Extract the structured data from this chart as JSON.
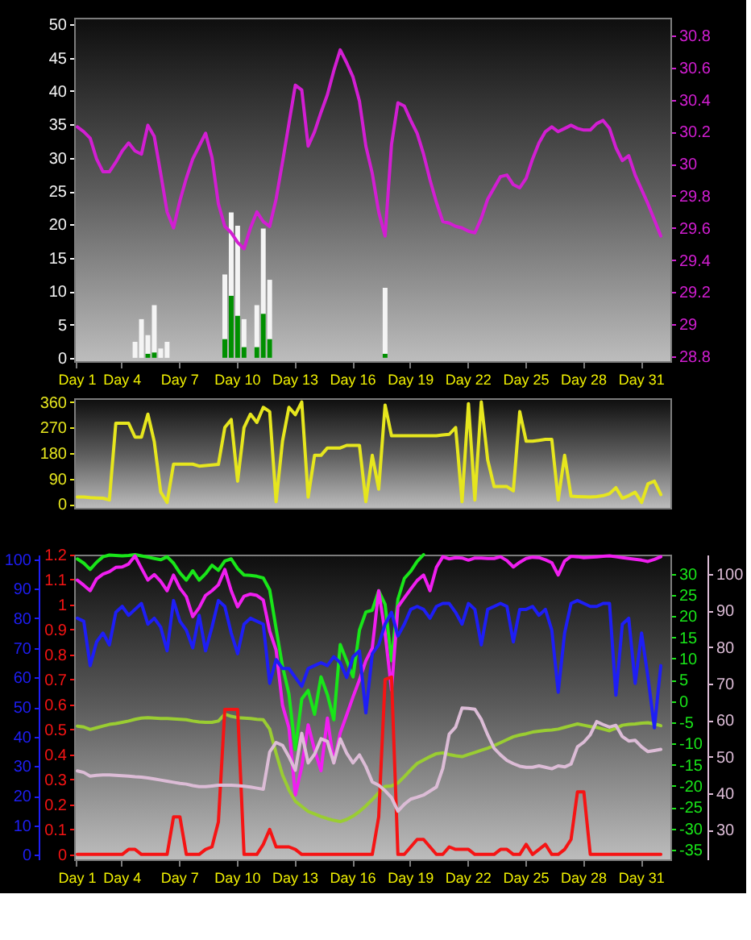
{
  "chart_data": [
    {
      "type": "bar",
      "categories": [
        "Day 1",
        null,
        null,
        null,
        null,
        null,
        null,
        "Day 4",
        null,
        null,
        null,
        null,
        null,
        null,
        null,
        null,
        "Day 7",
        null,
        null,
        null,
        null,
        null,
        null,
        null,
        null,
        "Day 10",
        null,
        null,
        null,
        null,
        null,
        null,
        null,
        null,
        "Day 13",
        null,
        null,
        null,
        null,
        null,
        null,
        null,
        null,
        "Day 16",
        null,
        null,
        null,
        null,
        null,
        null,
        null,
        null,
        "Day 19",
        null,
        null,
        null,
        null,
        null,
        null,
        null,
        null,
        "Day 22",
        null,
        null,
        null,
        null,
        null,
        null,
        null,
        null,
        "Day 25",
        null,
        null,
        null,
        null,
        null,
        null,
        null,
        null,
        "Day 28",
        null,
        null,
        null,
        null,
        null,
        null,
        null,
        null,
        "Day 31",
        null,
        null,
        null,
        null
      ],
      "ylim": [
        -0.5,
        51
      ],
      "yticks": [
        0,
        5,
        10,
        15,
        20,
        25,
        30,
        35,
        40,
        45,
        50
      ],
      "y2lim": [
        28.77,
        30.91
      ],
      "y2ticks": [
        28.8,
        29,
        29.2,
        29.4,
        29.6,
        29.8,
        30,
        30.2,
        30.4,
        30.6,
        30.8
      ],
      "series": [
        {
          "color": "#f4f4f4",
          "values": [
            null,
            null,
            null,
            null,
            null,
            null,
            null,
            null,
            null,
            2.4,
            5.8,
            3.4,
            7.9,
            1.4,
            2.4,
            null,
            null,
            null,
            null,
            null,
            null,
            null,
            null,
            12.5,
            21.8,
            19.8,
            5.8,
            null,
            7.9,
            19.4,
            11.7,
            null,
            null,
            null,
            null,
            null,
            null,
            null,
            null,
            null,
            null,
            null,
            null,
            null,
            null,
            null,
            null,
            null,
            10.5,
            null,
            null,
            null,
            null,
            null,
            null,
            null,
            null,
            null,
            null,
            null,
            null,
            null,
            null,
            null,
            null,
            null,
            null,
            null,
            null,
            null,
            null,
            null,
            null,
            null,
            null,
            null,
            null,
            null,
            null,
            null,
            null,
            null,
            null,
            null,
            null,
            null,
            null,
            null,
            null,
            null,
            null,
            null,
            null
          ]
        },
        {
          "color": "#008f00",
          "values": [
            null,
            null,
            null,
            null,
            null,
            null,
            null,
            null,
            null,
            null,
            null,
            0.6,
            0.8,
            null,
            null,
            null,
            null,
            null,
            null,
            null,
            null,
            null,
            null,
            2.8,
            9.3,
            6.3,
            1.6,
            null,
            1.6,
            6.6,
            2.8,
            null,
            null,
            null,
            null,
            null,
            null,
            null,
            null,
            null,
            null,
            null,
            null,
            null,
            null,
            null,
            null,
            null,
            0.6,
            null,
            null,
            null,
            null,
            null,
            null,
            null,
            null,
            null,
            null,
            null,
            null,
            null,
            null,
            null,
            null,
            null,
            null,
            null,
            null,
            null,
            null,
            null,
            null,
            null,
            null,
            null,
            null,
            null,
            null,
            null,
            null,
            null,
            null,
            null,
            null,
            null,
            null,
            null,
            null,
            null,
            null,
            null,
            null
          ]
        },
        {
          "type": "line",
          "axis": "y2",
          "color": "#d21ed2",
          "values": [
            30.23,
            30.2,
            30.16,
            30.03,
            29.95,
            29.95,
            30.01,
            30.08,
            30.13,
            30.08,
            30.06,
            30.24,
            30.17,
            29.94,
            29.7,
            29.6,
            29.77,
            29.91,
            30.03,
            30.11,
            30.19,
            30.04,
            29.75,
            29.61,
            29.57,
            29.51,
            29.47,
            29.6,
            29.7,
            29.64,
            29.61,
            29.78,
            30.01,
            30.25,
            30.49,
            30.46,
            30.11,
            30.2,
            30.32,
            30.43,
            30.58,
            30.71,
            30.63,
            30.54,
            30.39,
            30.11,
            29.94,
            29.7,
            29.55,
            30.12,
            30.38,
            30.36,
            30.27,
            30.19,
            30.06,
            29.9,
            29.76,
            29.64,
            29.63,
            29.61,
            29.6,
            29.58,
            29.57,
            29.66,
            29.78,
            29.85,
            29.92,
            29.93,
            29.87,
            29.85,
            29.91,
            30.03,
            30.13,
            30.2,
            30.23,
            30.2,
            30.22,
            30.24,
            30.22,
            30.21,
            30.21,
            30.25,
            30.27,
            30.22,
            30.1,
            30.02,
            30.05,
            29.93,
            29.84,
            29.75,
            29.65,
            29.55,
            null
          ]
        }
      ]
    },
    {
      "type": "line",
      "categories": [
        null,
        null,
        null,
        null,
        null,
        null,
        null,
        null,
        null,
        null,
        null,
        null,
        null,
        null,
        null,
        null,
        null,
        null,
        null,
        null,
        null,
        null,
        null,
        null,
        null,
        null,
        null,
        null,
        null,
        null,
        null,
        null,
        null,
        null,
        null,
        null,
        null,
        null,
        null,
        null,
        null,
        null,
        null,
        null,
        null,
        null,
        null,
        null,
        null,
        null,
        null,
        null,
        null,
        null,
        null,
        null,
        null,
        null,
        null,
        null,
        null,
        null,
        null,
        null,
        null,
        null,
        null,
        null,
        null,
        null,
        null,
        null,
        null,
        null,
        null,
        null,
        null,
        null,
        null,
        null,
        null,
        null,
        null,
        null,
        null,
        null,
        null,
        null,
        null,
        null,
        null,
        null,
        null
      ],
      "ylim": [
        -13,
        373
      ],
      "yticks": [
        0,
        90,
        180,
        270,
        360
      ],
      "tick_labels": "y",
      "series": [
        {
          "color": "#e6e61e",
          "values": [
            25,
            25,
            23,
            22,
            21,
            15,
            285,
            285,
            285,
            236,
            236,
            317,
            220,
            43,
            6,
            141,
            141,
            141,
            141,
            134,
            136,
            138,
            140,
            270,
            298,
            81,
            270,
            317,
            288,
            341,
            326,
            9,
            222,
            341,
            315,
            360,
            25,
            172,
            172,
            198,
            198,
            198,
            207,
            207,
            207,
            9,
            172,
            53,
            349,
            241,
            241,
            241,
            241,
            241,
            241,
            241,
            241,
            244,
            246,
            270,
            9,
            354,
            15,
            360,
            156,
            62,
            62,
            62,
            47,
            326,
            222,
            222,
            225,
            228,
            228,
            15,
            172,
            28,
            27,
            26,
            25,
            27,
            30,
            37,
            58,
            21,
            30,
            42,
            6,
            72,
            81,
            34,
            null
          ]
        }
      ]
    },
    {
      "type": "line",
      "categories": [
        "Day 1",
        null,
        null,
        null,
        null,
        null,
        null,
        "Day 4",
        null,
        null,
        null,
        null,
        null,
        null,
        null,
        null,
        "Day 7",
        null,
        null,
        null,
        null,
        null,
        null,
        null,
        null,
        "Day 10",
        null,
        null,
        null,
        null,
        null,
        null,
        null,
        null,
        "Day 13",
        null,
        null,
        null,
        null,
        null,
        null,
        null,
        null,
        "Day 16",
        null,
        null,
        null,
        null,
        null,
        null,
        null,
        null,
        "Day 19",
        null,
        null,
        null,
        null,
        null,
        null,
        null,
        null,
        "Day 22",
        null,
        null,
        null,
        null,
        null,
        null,
        null,
        null,
        "Day 25",
        null,
        null,
        null,
        null,
        null,
        null,
        null,
        null,
        "Day 28",
        null,
        null,
        null,
        null,
        null,
        null,
        null,
        null,
        "Day 31",
        null,
        null,
        null,
        null
      ],
      "ylim": [
        -1.5,
        101.5
      ],
      "yticks": [
        0,
        10,
        20,
        30,
        40,
        50,
        60,
        70,
        80,
        90,
        100
      ],
      "y2lim": [
        -0.02,
        1.2
      ],
      "y2ticks": [
        0,
        0.1,
        0.2,
        0.3,
        0.4,
        0.5,
        0.6,
        0.7,
        0.8,
        0.9,
        1,
        1.1,
        1.2
      ],
      "y3lim": [
        -37.3,
        34.5
      ],
      "y3ticks": [
        -35,
        -30,
        -25,
        -20,
        -15,
        -10,
        -5,
        0,
        5,
        10,
        15,
        20,
        25,
        30
      ],
      "series": [
        {
          "axis": "y3",
          "color": "#19e619",
          "values": [
            33.5,
            32.5,
            31.0,
            32.7,
            34.0,
            34.4,
            34.3,
            34.2,
            34.3,
            34.5,
            34.2,
            33.9,
            33.6,
            33.3,
            34.0,
            32.5,
            30.2,
            28.5,
            30.7,
            28.5,
            30.0,
            32.0,
            30.8,
            33.0,
            33.5,
            31.2,
            29.7,
            29.6,
            29.4,
            29.0,
            26.2,
            17.1,
            8.2,
            1.7,
            -11.4,
            0.5,
            2.5,
            -3.1,
            5.7,
            1.5,
            -4.4,
            13.3,
            9.5,
            5.7,
            16.7,
            21.0,
            21.4,
            26.0,
            22.8,
            9.5,
            24.0,
            28.9,
            30.6,
            32.9,
            34.5,
            null,
            null,
            null,
            null,
            null,
            null,
            null,
            null,
            null,
            null,
            null,
            null,
            null,
            null,
            null,
            null,
            null,
            null,
            null,
            null,
            null,
            null,
            null,
            null,
            null,
            null,
            null,
            null,
            null,
            null,
            null,
            null,
            null,
            null,
            null,
            null,
            null,
            null
          ]
        },
        {
          "axis": "y3",
          "color": "#f01ef0",
          "values": [
            28.5,
            27.3,
            26.0,
            28.8,
            29.9,
            30.5,
            31.5,
            31.6,
            32.3,
            34.2,
            31.3,
            28.5,
            29.8,
            28.2,
            26.0,
            29.7,
            26.6,
            24.6,
            19.9,
            22.0,
            24.9,
            26.0,
            27.4,
            31.0,
            26.0,
            22.2,
            24.7,
            25.2,
            24.9,
            23.8,
            16.5,
            12.0,
            -1.0,
            -6.3,
            -22.1,
            -15.5,
            -5.6,
            -11.5,
            -16.4,
            -4.0,
            -14.5,
            -7.5,
            -3.3,
            1.0,
            5.0,
            9.5,
            12.5,
            26.0,
            16.0,
            2.6,
            22.2,
            24.3,
            26.4,
            28.4,
            29.7,
            26.0,
            31.5,
            34.0,
            33.5,
            33.8,
            33.7,
            33.2,
            33.7,
            33.7,
            33.6,
            33.6,
            34.0,
            33.1,
            31.6,
            32.7,
            33.6,
            33.9,
            33.8,
            33.3,
            32.6,
            29.7,
            33.0,
            34.1,
            34.0,
            33.8,
            33.9,
            34.0,
            34.1,
            34.2,
            34.0,
            33.8,
            33.6,
            33.4,
            33.2,
            32.9,
            33.4,
            34.0,
            null
          ]
        },
        {
          "axis": "y3",
          "color": "#9acd32",
          "values": [
            -5.9,
            -6.1,
            -6.7,
            -6.3,
            -5.9,
            -5.5,
            -5.3,
            -5.0,
            -4.7,
            -4.3,
            -4.0,
            -3.9,
            -4.0,
            -4.1,
            -4.1,
            -4.2,
            -4.3,
            -4.4,
            -4.7,
            -4.9,
            -5.0,
            -5.0,
            -4.7,
            -3.1,
            -3.6,
            -3.9,
            -4.0,
            -4.1,
            -4.3,
            -4.4,
            -6.6,
            -12.3,
            -17.4,
            -20.9,
            -23.6,
            -24.8,
            -26.0,
            -26.6,
            -27.2,
            -27.7,
            -28.1,
            -28.4,
            -27.9,
            -27.1,
            -26.0,
            -24.7,
            -23.2,
            -21.6,
            -20.1,
            -20.0,
            -19.3,
            -17.8,
            -16.2,
            -14.7,
            -13.9,
            -13.1,
            -12.4,
            -12.2,
            -12.6,
            -12.9,
            -13.1,
            -12.6,
            -12.1,
            -11.6,
            -11.1,
            -10.5,
            -9.8,
            -9.1,
            -8.4,
            -8.0,
            -7.7,
            -7.3,
            -7.1,
            -6.9,
            -6.8,
            -6.6,
            -6.2,
            -5.8,
            -5.4,
            -5.7,
            -6.0,
            -6.2,
            -6.6,
            -7.0,
            -6.4,
            -5.7,
            -5.5,
            -5.4,
            -5.2,
            -5.1,
            -5.4,
            -5.8,
            null
          ]
        },
        {
          "color": "#1e1ef5",
          "values": [
            80,
            79,
            64,
            72,
            75,
            71,
            82,
            84,
            81,
            83,
            85,
            78,
            80,
            77,
            69,
            86,
            79,
            76,
            70,
            81,
            69,
            77,
            86,
            84,
            75,
            68,
            78,
            80,
            79,
            78,
            58,
            66,
            63,
            63,
            60,
            57,
            63,
            64,
            65,
            64,
            67,
            65,
            60,
            67,
            69,
            48,
            68,
            71,
            78,
            82,
            74,
            78,
            83,
            84,
            83,
            80,
            84,
            85,
            85,
            82,
            78,
            85,
            83,
            71,
            83,
            84,
            85,
            84,
            72,
            83,
            83,
            84,
            81,
            83,
            76,
            55,
            75,
            85,
            86,
            85,
            84,
            84,
            85,
            85,
            54,
            78,
            80,
            58,
            75,
            60,
            43,
            64,
            null
          ]
        },
        {
          "axis": "y2",
          "color": "#f51414",
          "values": [
            0,
            0,
            0,
            0,
            0,
            0,
            0,
            0,
            0.02,
            0.02,
            0,
            0,
            0,
            0,
            0,
            0.15,
            0.15,
            0,
            0,
            0,
            0.02,
            0.03,
            0.13,
            0.58,
            0.58,
            0.58,
            0,
            0,
            0,
            0.04,
            0.1,
            0.03,
            0.03,
            0.03,
            0.02,
            0,
            0,
            0,
            0,
            0,
            0,
            0,
            0,
            0,
            0,
            0,
            0,
            0.15,
            0.7,
            0.71,
            0,
            0,
            0.03,
            0.06,
            0.06,
            0.03,
            0,
            0,
            0.03,
            0.02,
            0.02,
            0.02,
            0,
            0,
            0,
            0,
            0.02,
            0.02,
            0,
            0,
            0.04,
            0,
            0.02,
            0.04,
            0,
            0,
            0.02,
            0.06,
            0.25,
            0.25,
            0,
            0,
            0,
            0,
            0,
            0,
            0,
            0,
            0,
            0,
            0,
            0,
            null
          ]
        }
      ]
    },
    {
      "type": "line",
      "categories": [
        null,
        null,
        null,
        null,
        null,
        null,
        null,
        null,
        null,
        null,
        null,
        null,
        null,
        null,
        null,
        null,
        null,
        null,
        null,
        null,
        null,
        null,
        null,
        null,
        null,
        null,
        null,
        null,
        null,
        null,
        null,
        null,
        null,
        null,
        null,
        null,
        null,
        null,
        null,
        null,
        null,
        null,
        null,
        null,
        null,
        null,
        null,
        null,
        null,
        null,
        null,
        null,
        null,
        null,
        null,
        null,
        null,
        null,
        null,
        null,
        null,
        null,
        null,
        null,
        null,
        null,
        null,
        null,
        null,
        null,
        null,
        null,
        null,
        null,
        null,
        null,
        null,
        null,
        null,
        null,
        null,
        null,
        null,
        null,
        null,
        null,
        null,
        null,
        null,
        null,
        null,
        null,
        null
      ],
      "ylim": [
        21.9,
        105.3
      ],
      "yticks": [
        30,
        40,
        50,
        60,
        70,
        80,
        90,
        100
      ],
      "tick_labels": "y",
      "series": [
        {
          "color": "#dcbcd6",
          "values": [
            46.1,
            45.7,
            44.7,
            44.9,
            45.0,
            45.0,
            44.9,
            44.8,
            44.7,
            44.5,
            44.4,
            44.2,
            43.9,
            43.6,
            43.3,
            43.0,
            42.7,
            42.5,
            42.1,
            41.8,
            41.8,
            42.0,
            42.2,
            42.2,
            42.2,
            42.1,
            41.9,
            41.7,
            41.4,
            41.1,
            51.3,
            53.9,
            53.1,
            50.0,
            46.3,
            56.4,
            48.3,
            50.7,
            54.9,
            54.2,
            48.3,
            54.9,
            51.0,
            48.3,
            50.5,
            47.3,
            43.1,
            42.2,
            40.7,
            38.8,
            35.1,
            37.0,
            38.4,
            38.9,
            39.5,
            40.6,
            41.7,
            46.8,
            56.2,
            58.1,
            63.3,
            63.2,
            63.0,
            60.2,
            56.0,
            52.3,
            50.5,
            49.0,
            48.1,
            47.4,
            47.1,
            47.1,
            47.5,
            47.1,
            46.7,
            47.5,
            47.2,
            48.0,
            52.7,
            54.0,
            56.0,
            59.6,
            58.8,
            58.1,
            58.6,
            55.5,
            54.3,
            54.5,
            52.7,
            51.4,
            51.7,
            52.0,
            null
          ]
        }
      ]
    }
  ]
}
